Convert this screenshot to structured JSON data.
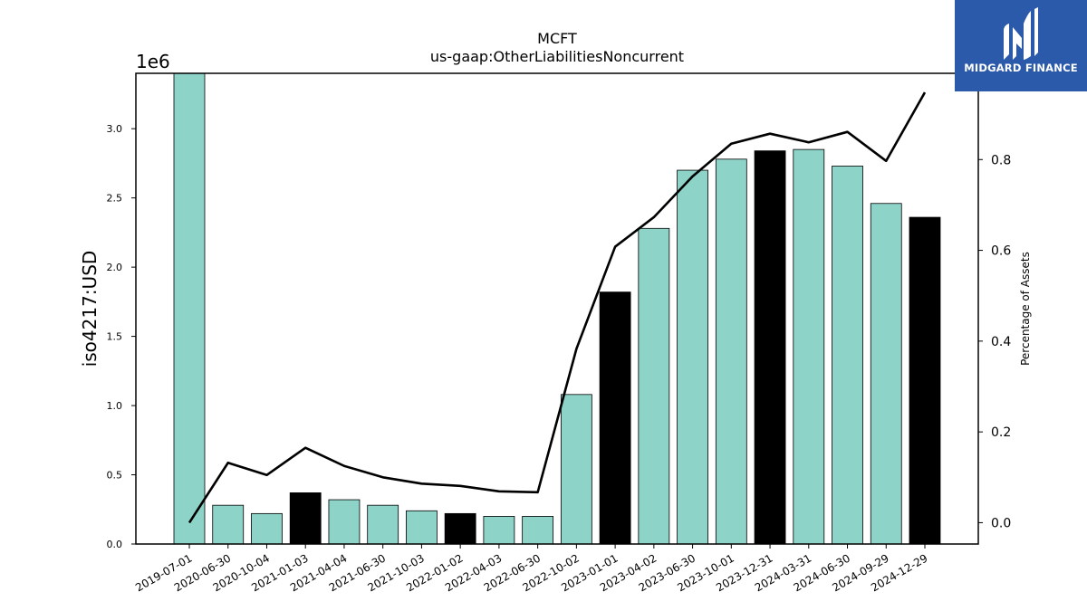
{
  "chart_data": {
    "type": "bar",
    "title": "MCFT",
    "subtitle": "us-gaap:OtherLiabilitiesNoncurrent",
    "ylabel": "iso4217:USD",
    "y_offset_label": "1e6",
    "y2label": "Percentage of Assets",
    "ylim": [
      0,
      3400000
    ],
    "y2lim": [
      -0.047,
      0.99
    ],
    "yticks": [
      "0.0",
      "0.5",
      "1.0",
      "1.5",
      "2.0",
      "2.5",
      "3.0"
    ],
    "y2ticks": [
      "0.0",
      "0.2",
      "0.4",
      "0.6",
      "0.8"
    ],
    "categories": [
      "2019-07-01",
      "2020-06-30",
      "2020-10-04",
      "2021-01-03",
      "2021-04-04",
      "2021-06-30",
      "2021-10-03",
      "2022-01-02",
      "2022-04-03",
      "2022-06-30",
      "2022-10-02",
      "2023-01-01",
      "2023-04-02",
      "2023-06-30",
      "2023-10-01",
      "2023-12-31",
      "2024-03-31",
      "2024-06-30",
      "2024-09-29",
      "2024-12-29"
    ],
    "values": [
      3400000,
      280000,
      220000,
      370000,
      320000,
      280000,
      240000,
      220000,
      200000,
      200000,
      1080000,
      1820000,
      2280000,
      2700000,
      2780000,
      2840000,
      2850000,
      2730000,
      2460000,
      2360000
    ],
    "bar_colors": [
      "#8dd3c7",
      "#8dd3c7",
      "#8dd3c7",
      "#000000",
      "#8dd3c7",
      "#8dd3c7",
      "#8dd3c7",
      "#000000",
      "#8dd3c7",
      "#8dd3c7",
      "#8dd3c7",
      "#000000",
      "#8dd3c7",
      "#8dd3c7",
      "#8dd3c7",
      "#000000",
      "#8dd3c7",
      "#8dd3c7",
      "#8dd3c7",
      "#000000"
    ],
    "line_series": {
      "values": [
        0.0,
        0.132,
        0.105,
        0.165,
        0.125,
        0.1,
        0.086,
        0.081,
        0.069,
        0.067,
        0.383,
        0.608,
        0.673,
        0.763,
        0.835,
        0.857,
        0.838,
        0.861,
        0.797,
        0.948
      ],
      "color": "#000000"
    },
    "grid": false,
    "legend": "none"
  },
  "logo": {
    "text": "MIDGARD FINANCE",
    "bg_color": "#2c5aab"
  }
}
